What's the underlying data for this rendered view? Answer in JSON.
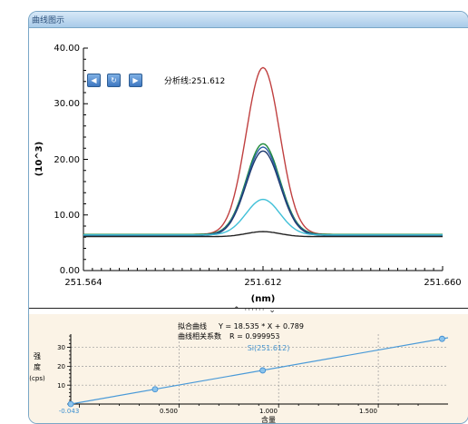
{
  "window": {
    "title": "曲线图示"
  },
  "spectrum": {
    "analysis_label": "分析线:251.612",
    "y_ticks": [
      "40.00",
      "30.00",
      "20.00",
      "10.00",
      "0.00"
    ],
    "x_ticks": [
      "251.564",
      "251.612",
      "251.660"
    ],
    "y_label": "(10^3)",
    "x_label": "(nm)",
    "buttons": {
      "prev": "◀",
      "refresh": "↻",
      "next": "▶"
    }
  },
  "calibration": {
    "fit_curve_label": "拟合曲线",
    "fit_equation": "Y = 18.535 * X + 0.789",
    "corr_label": "曲线相关系数",
    "corr_value": "R = 0.999953",
    "series_label": "Si(251.612)",
    "y_label_1": "强",
    "y_label_2": "度",
    "y_label_3": "(cps)",
    "y_ticks": [
      "30",
      "20",
      "10"
    ],
    "x_ticks": [
      "-0.043",
      "0.500",
      "1.000",
      "1.500"
    ],
    "x_label": "含量"
  },
  "chart_data": [
    {
      "type": "line",
      "xlabel": "(nm)",
      "ylabel": "(10^3)",
      "xlim": [
        251.564,
        251.66
      ],
      "ylim": [
        0,
        40
      ],
      "grid": false,
      "series": [
        {
          "color": "#c04040",
          "peak": 36.5,
          "base": 6.5
        },
        {
          "color": "#1e8a3a",
          "peak": 22.8,
          "base": 6.5
        },
        {
          "color": "#2a5fa8",
          "peak": 22.2,
          "base": 6.4
        },
        {
          "color": "#1f3a6e",
          "peak": 21.5,
          "base": 6.3
        },
        {
          "color": "#40c0d8",
          "peak": 12.8,
          "base": 6.4
        },
        {
          "color": "#222222",
          "peak": 7.0,
          "base": 6.1
        }
      ]
    },
    {
      "type": "scatter",
      "xlabel": "含量",
      "ylabel": "强度 (cps)",
      "xlim": [
        -0.043,
        1.85
      ],
      "ylim": [
        0,
        37
      ],
      "grid": true,
      "fit": {
        "slope": 18.535,
        "intercept": 0.789
      },
      "points": [
        {
          "x": -0.043,
          "y": 0
        },
        {
          "x": 0.38,
          "y": 7.8
        },
        {
          "x": 0.92,
          "y": 17.8
        },
        {
          "x": 1.82,
          "y": 34.5
        }
      ],
      "color": "#4a9ad8"
    }
  ]
}
